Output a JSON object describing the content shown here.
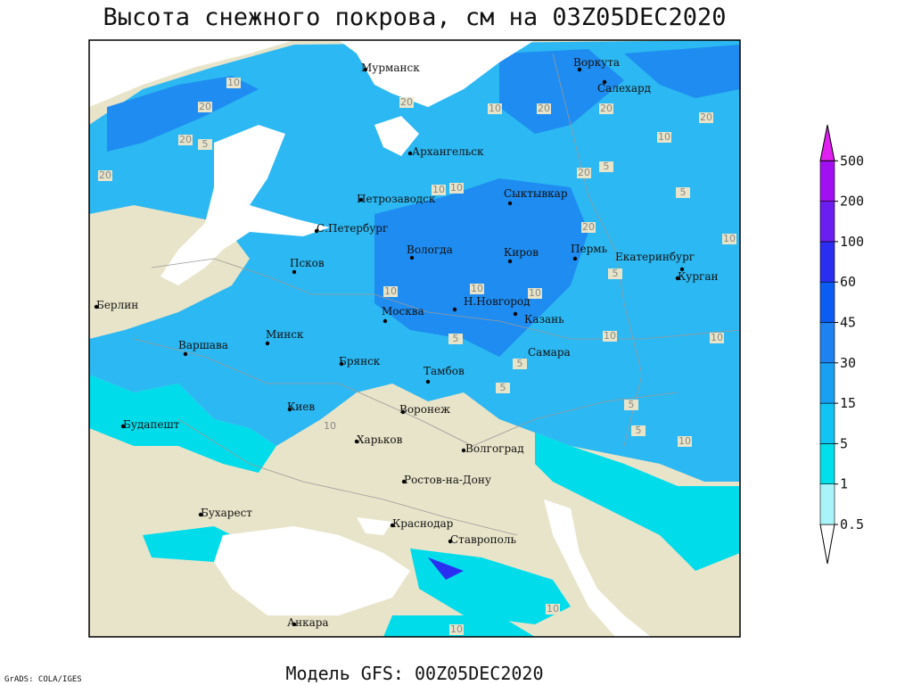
{
  "header": {
    "title": "Высота снежного покрова, см на 03Z05DEC2020"
  },
  "cities": [
    "Мурманск",
    "Воркута",
    "Салехард",
    "Архангельск",
    "Сыктывкар",
    "Петрозаводск",
    "С.Петербург",
    "Вологда",
    "Киров",
    "Пермь",
    "Екатеринбург",
    "Курган",
    "Псков",
    "Берлин",
    "Москва",
    "Н.Новгород",
    "Казань",
    "Минск",
    "Варшава",
    "Брянск",
    "Тамбов",
    "Самара",
    "Воронеж",
    "Киев",
    "Будапешт",
    "Харьков",
    "Волгоград",
    "Ростов-на-Дону",
    "Бухарест",
    "Краснодар",
    "Ставрополь",
    "Анкара"
  ],
  "contour_labels": [
    "20",
    "20",
    "10",
    "5",
    "20",
    "20",
    "10",
    "20",
    "20",
    "20",
    "10",
    "10",
    "10",
    "5",
    "20",
    "5",
    "20",
    "10",
    "5",
    "10",
    "10",
    "10",
    "10",
    "10",
    "5",
    "5",
    "5",
    "5",
    "10",
    "10",
    "10",
    "5",
    "10"
  ],
  "legend": {
    "levels": [
      0.5,
      1,
      5,
      15,
      30,
      45,
      60,
      100,
      200,
      500
    ],
    "colors": [
      "#ffffff",
      "#a8f4fa",
      "#00e0ea",
      "#10c4f4",
      "#1aa0f2",
      "#1e82f0",
      "#0a5cf2",
      "#2a2ef0",
      "#6a1ef0",
      "#a010f0",
      "#e020f0"
    ]
  },
  "footer": {
    "model": "Модель GFS: 00Z05DEC2020",
    "credit": "GrADS: COLA/IGES"
  }
}
